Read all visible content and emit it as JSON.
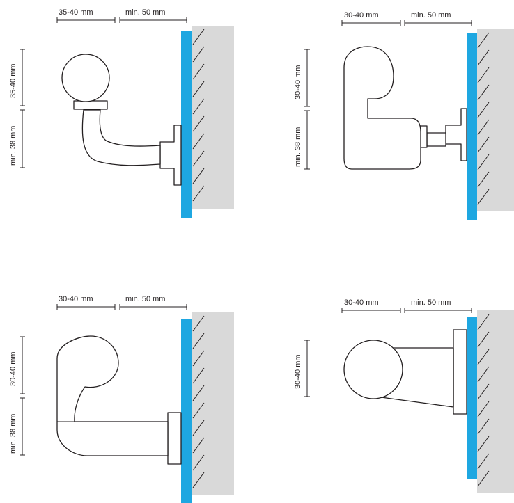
{
  "diagrams": [
    {
      "horizontal_1": "35-40 mm",
      "horizontal_2": "min. 50 mm",
      "vertical_1": "35-40 mm",
      "vertical_2": "min. 38 mm"
    },
    {
      "horizontal_1": "30-40 mm",
      "horizontal_2": "min. 50 mm",
      "vertical_1": "30-40 mm",
      "vertical_2": "min. 38 mm"
    },
    {
      "horizontal_1": "30-40 mm",
      "horizontal_2": "min. 50 mm",
      "vertical_1": "30-40 mm",
      "vertical_2": "min. 38 mm"
    },
    {
      "horizontal_1": "30-40 mm",
      "horizontal_2": "min. 50 mm",
      "vertical_1": "30-40 mm"
    }
  ],
  "colors": {
    "bumper": "#1ea7e1",
    "wall": "#d9d9d9",
    "line": "#231f20"
  }
}
